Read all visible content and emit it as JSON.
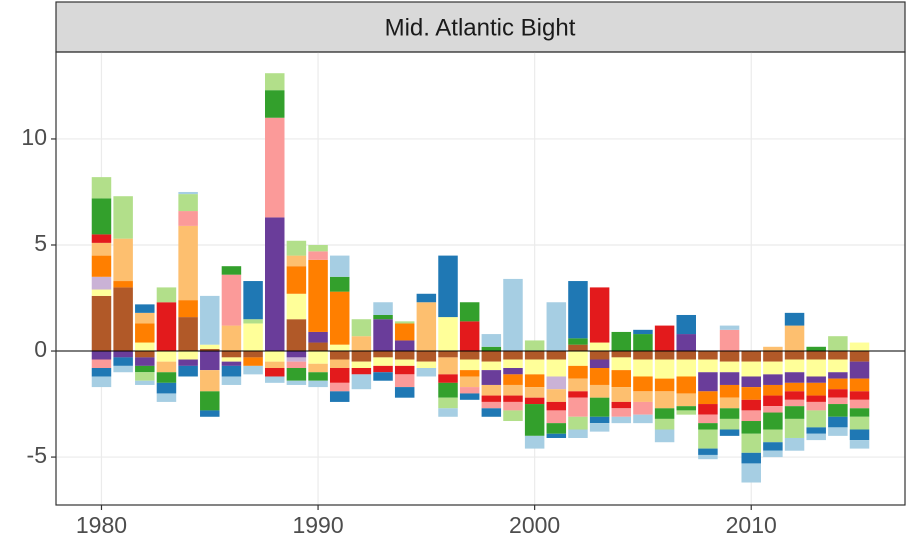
{
  "chart_data": {
    "type": "stacked-bar",
    "title": "Mid. Atlantic Bight",
    "x": [
      1980,
      1981,
      1982,
      1983,
      1984,
      1985,
      1986,
      1987,
      1988,
      1989,
      1990,
      1991,
      1992,
      1993,
      1994,
      1995,
      1996,
      1997,
      1998,
      1999,
      2000,
      2001,
      2002,
      2003,
      2004,
      2005,
      2006,
      2007,
      2008,
      2009,
      2010,
      2011,
      2012,
      2013,
      2014,
      2015
    ],
    "xlim": [
      1977.9,
      2017.1
    ],
    "xticks": [
      1980,
      1990,
      2000,
      2010
    ],
    "ylim": [
      -7.26,
      14.1
    ],
    "yticks": [
      -5,
      0,
      5,
      10
    ],
    "grid": true,
    "hline": 0,
    "series": [
      {
        "color": "#b15928",
        "values": [
          2.6,
          3.0,
          -0.3,
          0,
          1.6,
          0.1,
          -0.3,
          -0.3,
          0,
          1.5,
          0.4,
          -0.4,
          -0.5,
          -0.3,
          -0.4,
          -0.5,
          -0.3,
          -0.4,
          -0.5,
          -0.4,
          -0.4,
          -0.4,
          0.3,
          -0.4,
          -0.3,
          -0.4,
          -0.4,
          -0.4,
          -0.4,
          -0.5,
          -0.5,
          -0.5,
          -0.4,
          -0.4,
          -0.4,
          -0.5
        ]
      },
      {
        "color": "#ffff99",
        "values": [
          0.3,
          0,
          0.4,
          -0.5,
          -0.4,
          0.2,
          -0.2,
          1.3,
          -0.5,
          1.2,
          -0.6,
          0.3,
          -0.3,
          -0.4,
          -0.3,
          -0.3,
          1.6,
          -0.5,
          -0.4,
          -0.4,
          -0.7,
          -0.8,
          -0.7,
          0.4,
          -0.6,
          -0.8,
          -0.9,
          -0.8,
          -0.6,
          -0.5,
          -0.7,
          -0.6,
          -0.6,
          -0.8,
          -0.6,
          0.4
        ]
      },
      {
        "color": "#6a3d9a",
        "values": [
          -0.4,
          -0.3,
          -0.4,
          0,
          -0.3,
          -0.9,
          -0.2,
          0,
          6.3,
          -0.3,
          0.5,
          0,
          0,
          1.5,
          0.5,
          0,
          0,
          0,
          -0.7,
          -0.3,
          0,
          0,
          0,
          -0.4,
          0,
          0,
          0,
          0.8,
          -0.9,
          -0.6,
          -0.5,
          -0.5,
          -0.5,
          -0.3,
          -0.3,
          -0.8
        ]
      },
      {
        "color": "#cab2d6",
        "values": [
          0.6,
          0,
          0,
          0,
          0,
          0,
          0,
          0,
          0,
          -0.2,
          0,
          0,
          0,
          0,
          0,
          0,
          0,
          0,
          0,
          0,
          0,
          -0.6,
          0,
          0,
          0,
          0,
          0,
          0,
          0,
          0,
          0,
          0,
          0,
          0,
          0,
          0
        ]
      },
      {
        "color": "#ff7f00",
        "values": [
          1.0,
          0.3,
          0.9,
          0,
          0.8,
          0,
          0,
          -0.4,
          0,
          1.3,
          3.4,
          2.5,
          0,
          0,
          0.8,
          0,
          0,
          -0.3,
          0,
          -0.5,
          -0.6,
          0,
          -0.6,
          -0.8,
          -0.8,
          -0.7,
          -0.6,
          -0.8,
          -0.6,
          -0.6,
          -0.6,
          -0.5,
          -0.4,
          -0.6,
          -0.5,
          -0.6
        ]
      },
      {
        "color": "#fdbf6f",
        "values": [
          0.6,
          2.0,
          0.5,
          -0.5,
          3.5,
          -1.0,
          1.2,
          0,
          -0.3,
          0.5,
          -0.4,
          -0.4,
          0.7,
          0,
          0,
          2.3,
          -0.8,
          -0.5,
          -0.5,
          -0.5,
          -0.5,
          -0.6,
          -0.6,
          -0.6,
          -0.7,
          -0.5,
          -0.8,
          -0.6,
          0,
          -0.5,
          0,
          0.2,
          1.2,
          0,
          0,
          0
        ]
      },
      {
        "color": "#e31a1c",
        "values": [
          0.4,
          0,
          0,
          2.3,
          0,
          0,
          0,
          0,
          -0.4,
          0,
          0,
          -0.7,
          -0.3,
          -0.3,
          -0.4,
          0,
          -0.4,
          1.4,
          -0.3,
          -0.3,
          -0.3,
          -0.4,
          -0.3,
          2.6,
          -0.3,
          0,
          1.2,
          0,
          -0.5,
          0,
          -0.5,
          -0.5,
          -0.4,
          -0.3,
          -0.4,
          -0.4
        ]
      },
      {
        "color": "#fb9a99",
        "values": [
          -0.4,
          0,
          0,
          0,
          0.7,
          0,
          2.4,
          0,
          4.7,
          -0.3,
          0.4,
          -0.4,
          0,
          0,
          -0.6,
          0,
          0,
          -0.3,
          -0.3,
          -0.4,
          0,
          -0.6,
          -0.9,
          0,
          -0.4,
          -0.6,
          0,
          0,
          -0.4,
          1.0,
          -0.5,
          -0.3,
          -0.3,
          -0.4,
          -0.3,
          -0.4
        ]
      },
      {
        "color": "#33a02c",
        "values": [
          1.7,
          0,
          -0.3,
          -0.5,
          0,
          -0.9,
          0.4,
          0,
          1.3,
          -0.6,
          -0.4,
          0.7,
          0,
          0.2,
          0,
          0,
          -0.7,
          0.9,
          0.2,
          0,
          -1.5,
          -0.5,
          0.3,
          -0.9,
          0.9,
          0.8,
          -0.5,
          -0.2,
          -0.3,
          -0.5,
          -0.6,
          -0.8,
          -0.6,
          0.2,
          -0.6,
          -0.4
        ]
      },
      {
        "color": "#b2df8a",
        "values": [
          1.0,
          2.0,
          -0.4,
          0.7,
          0.8,
          0,
          0,
          0.2,
          0.8,
          0.7,
          0.3,
          0,
          0.8,
          0,
          0.1,
          0,
          -0.5,
          0,
          0,
          -0.5,
          0.5,
          0,
          -0.6,
          0,
          0,
          0,
          -0.5,
          -0.2,
          -0.9,
          -0.5,
          -0.9,
          -0.6,
          -0.9,
          -0.8,
          0.7,
          -0.6
        ]
      },
      {
        "color": "#1f78b4",
        "values": [
          -0.4,
          -0.4,
          0.4,
          -0.5,
          -0.5,
          -0.3,
          -0.5,
          1.8,
          0,
          0,
          0,
          -0.5,
          0,
          -0.4,
          -0.5,
          0.4,
          2.9,
          -0.3,
          -0.4,
          0,
          0,
          -0.2,
          2.7,
          -0.3,
          0,
          0.2,
          0,
          0.9,
          -0.3,
          -0.3,
          -0.5,
          -0.4,
          0.6,
          -0.3,
          -0.5,
          -0.5
        ]
      },
      {
        "color": "#a6cee3",
        "values": [
          -0.5,
          -0.3,
          -0.2,
          -0.4,
          0.1,
          2.3,
          -0.4,
          -0.4,
          -0.3,
          -0.2,
          -0.3,
          1.0,
          -0.7,
          0.6,
          0,
          -0.4,
          -0.4,
          0,
          0.6,
          3.4,
          -0.6,
          2.3,
          -0.4,
          -0.4,
          -0.3,
          -0.4,
          -0.6,
          0,
          -0.2,
          0.2,
          -0.9,
          -0.3,
          -0.6,
          -0.3,
          -0.4,
          -0.4
        ]
      }
    ]
  }
}
